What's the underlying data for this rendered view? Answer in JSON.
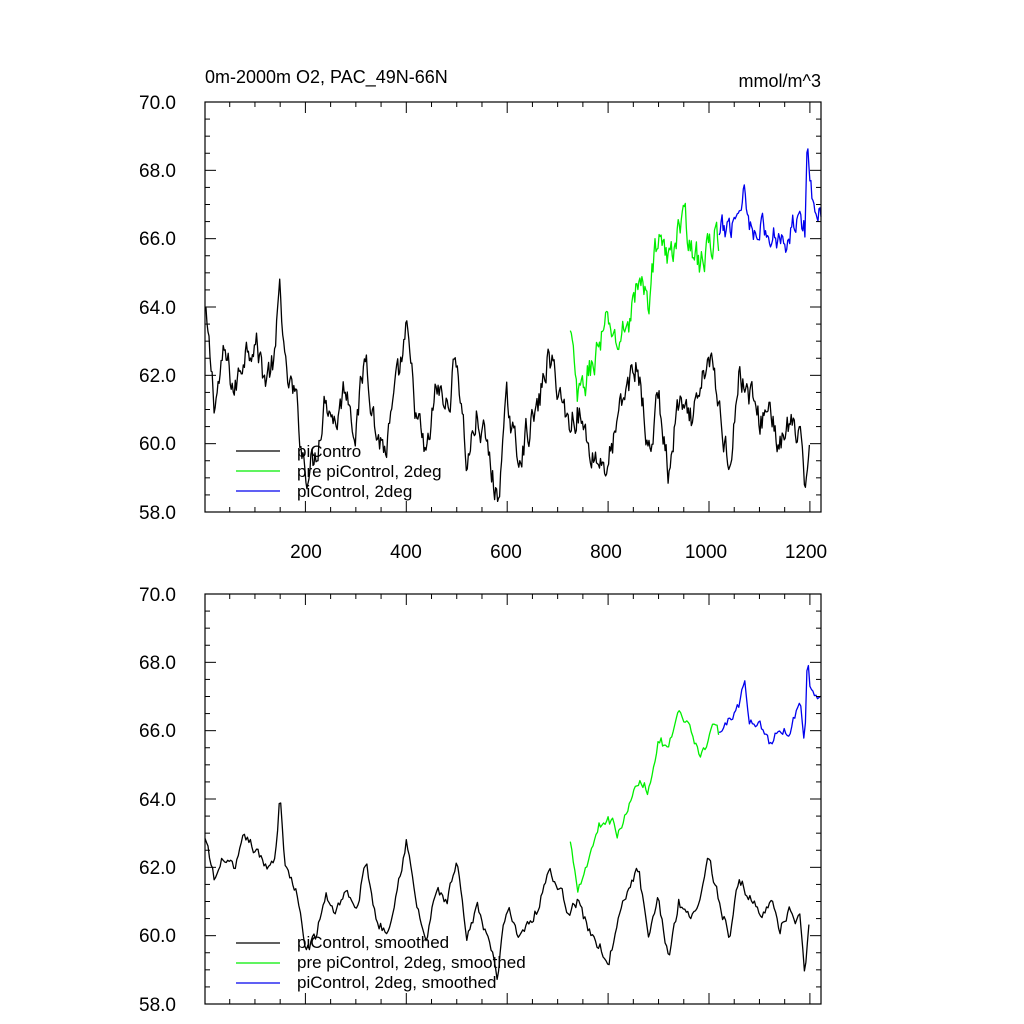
{
  "chart_data": [
    {
      "type": "line",
      "title": "0m-2000m O2, PAC_49N-66N",
      "units": "mmol/m^3",
      "xlim": [
        1,
        1222
      ],
      "ylim": [
        58.0,
        70.0
      ],
      "x_ticks": [
        200,
        400,
        600,
        800,
        1000,
        1200
      ],
      "x_tick_labels": [
        "200",
        "400",
        "600",
        "800",
        "1000",
        "1200"
      ],
      "y_ticks": [
        58.0,
        60.0,
        62.0,
        64.0,
        66.0,
        68.0,
        70.0
      ],
      "y_tick_labels": [
        "58.0",
        "60.0",
        "62.0",
        "64.0",
        "66.0",
        "68.0",
        "70.0"
      ],
      "legend_position": "bottom-left",
      "series": [
        {
          "name": "piContro",
          "color": "#000000",
          "x": [
            1,
            20,
            40,
            60,
            80,
            100,
            120,
            140,
            150,
            160,
            180,
            200,
            220,
            240,
            260,
            280,
            300,
            320,
            340,
            360,
            380,
            400,
            420,
            440,
            460,
            480,
            500,
            520,
            540,
            560,
            580,
            600,
            620,
            640,
            660,
            680,
            700,
            720,
            740,
            760,
            780,
            800,
            820,
            840,
            860,
            880,
            900,
            920,
            940,
            960,
            980,
            1000,
            1020,
            1040,
            1060,
            1080,
            1100,
            1120,
            1140,
            1160,
            1180,
            1190,
            1200
          ],
          "values": [
            63.8,
            61.2,
            62.6,
            61.5,
            62.8,
            63.1,
            61.9,
            62.4,
            64.8,
            62.0,
            61.3,
            59.2,
            59.6,
            61.5,
            60.6,
            61.8,
            60.4,
            62.7,
            60.3,
            59.8,
            61.5,
            63.2,
            60.8,
            59.5,
            61.7,
            61.0,
            62.6,
            59.4,
            60.8,
            59.9,
            58.3,
            61.2,
            59.6,
            60.4,
            60.9,
            62.5,
            61.8,
            60.6,
            61.0,
            60.0,
            59.5,
            59.4,
            60.6,
            61.8,
            62.3,
            59.6,
            61.4,
            59.0,
            61.2,
            60.5,
            61.1,
            62.7,
            61.0,
            59.5,
            62.0,
            61.5,
            60.6,
            61.2,
            59.8,
            60.6,
            60.0,
            58.5,
            60.6
          ]
        },
        {
          "name": "pre piControl, 2deg",
          "color": "#00ee00",
          "x": [
            725,
            740,
            760,
            780,
            800,
            820,
            840,
            860,
            880,
            900,
            920,
            940,
            960,
            980,
            1000,
            1010,
            1020
          ],
          "values": [
            63.2,
            61.2,
            62.0,
            62.8,
            63.5,
            62.9,
            63.6,
            64.7,
            64.2,
            66.3,
            65.2,
            66.5,
            66.2,
            65.2,
            65.7,
            66.1,
            65.8
          ],
          "noise": 0.9
        },
        {
          "name": "piControl, 2deg",
          "color": "#0000ee",
          "x": [
            1020,
            1040,
            1060,
            1070,
            1080,
            1100,
            1120,
            1140,
            1160,
            1180,
            1190,
            1195,
            1200,
            1210,
            1222
          ],
          "values": [
            66.0,
            66.4,
            66.9,
            67.6,
            66.3,
            66.5,
            65.9,
            66.2,
            66.0,
            67.2,
            66.2,
            68.6,
            67.7,
            67.1,
            67.0
          ],
          "noise": 0.8
        }
      ]
    },
    {
      "type": "line",
      "xlim": [
        1,
        1222
      ],
      "ylim": [
        58.0,
        70.0
      ],
      "x_ticks": [
        200,
        400,
        600,
        800,
        1000,
        1200
      ],
      "y_ticks": [
        58.0,
        60.0,
        62.0,
        64.0,
        66.0,
        68.0,
        70.0
      ],
      "y_tick_labels": [
        "58.0",
        "60.0",
        "62.0",
        "64.0",
        "66.0",
        "68.0",
        "70.0"
      ],
      "legend_position": "bottom-left",
      "series": [
        {
          "name": "piControl, smoothed",
          "color": "#000000",
          "x": [
            1,
            20,
            40,
            60,
            80,
            100,
            120,
            140,
            150,
            160,
            180,
            200,
            220,
            240,
            260,
            280,
            300,
            320,
            340,
            360,
            380,
            400,
            420,
            440,
            460,
            480,
            500,
            520,
            540,
            560,
            580,
            600,
            620,
            640,
            660,
            680,
            700,
            720,
            740,
            760,
            780,
            800,
            820,
            840,
            860,
            880,
            900,
            920,
            940,
            960,
            980,
            1000,
            1020,
            1040,
            1060,
            1080,
            1100,
            1120,
            1140,
            1160,
            1180,
            1190,
            1200
          ],
          "values": [
            62.8,
            61.6,
            62.3,
            61.8,
            62.9,
            62.5,
            62.0,
            62.3,
            64.2,
            62.0,
            61.4,
            59.6,
            59.9,
            61.2,
            60.7,
            61.4,
            60.6,
            62.2,
            60.5,
            60.1,
            61.3,
            62.8,
            60.9,
            59.8,
            61.4,
            60.9,
            62.1,
            59.8,
            60.8,
            60.1,
            58.8,
            61.0,
            60.0,
            60.4,
            60.8,
            61.9,
            61.5,
            60.8,
            61.0,
            60.2,
            59.8,
            59.2,
            60.4,
            61.3,
            62.0,
            59.8,
            61.0,
            59.4,
            61.0,
            60.6,
            61.0,
            62.3,
            61.0,
            60.0,
            61.6,
            61.2,
            60.6,
            61.1,
            60.2,
            60.7,
            60.4,
            58.7,
            60.4
          ]
        },
        {
          "name": "pre piControl, 2deg, smoothed",
          "color": "#00ee00",
          "x": [
            725,
            740,
            760,
            780,
            800,
            820,
            840,
            860,
            880,
            900,
            920,
            940,
            960,
            980,
            1000,
            1010,
            1020
          ],
          "values": [
            62.7,
            61.5,
            62.2,
            63.2,
            63.5,
            63.0,
            63.7,
            64.5,
            64.3,
            65.8,
            65.4,
            66.4,
            66.0,
            65.3,
            65.8,
            66.0,
            65.9
          ],
          "noise": 0.35
        },
        {
          "name": "piControl, 2deg, smoothed",
          "color": "#0000ee",
          "x": [
            1020,
            1040,
            1060,
            1070,
            1080,
            1100,
            1120,
            1140,
            1160,
            1180,
            1190,
            1195,
            1200,
            1210,
            1222
          ],
          "values": [
            65.9,
            66.3,
            66.8,
            67.5,
            66.2,
            66.3,
            65.6,
            66.1,
            66.0,
            66.9,
            65.7,
            68.4,
            67.5,
            67.0,
            67.0
          ],
          "noise": 0.3
        }
      ]
    }
  ]
}
